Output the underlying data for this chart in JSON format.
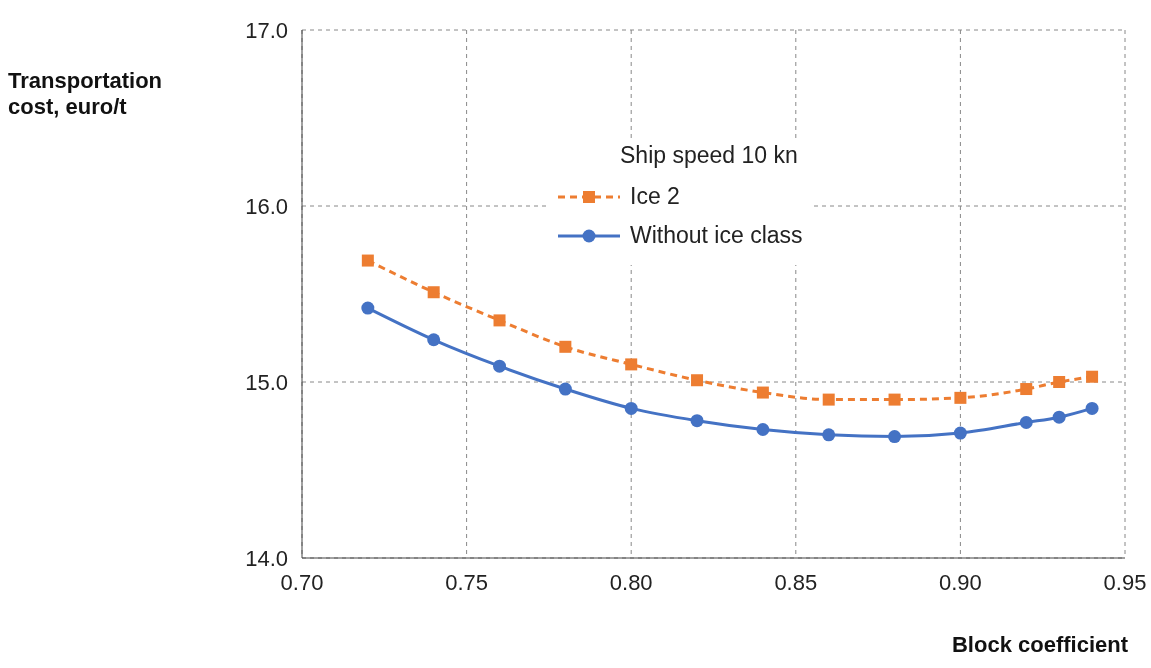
{
  "chart_data": {
    "type": "line",
    "xlabel": "Block coefficient",
    "ylabel": "Transportation cost, euro/t",
    "legend_title": "Ship speed 10 kn",
    "x": [
      0.72,
      0.74,
      0.76,
      0.78,
      0.8,
      0.82,
      0.84,
      0.86,
      0.88,
      0.9,
      0.92,
      0.93,
      0.94
    ],
    "series": [
      {
        "name": "Ice 2",
        "color": "#ed7d31",
        "marker": "square",
        "line_style": "dashed",
        "values": [
          15.69,
          15.51,
          15.35,
          15.2,
          15.1,
          15.01,
          14.94,
          14.9,
          14.9,
          14.91,
          14.96,
          15.0,
          15.03
        ]
      },
      {
        "name": "Without ice class",
        "color": "#4472c4",
        "marker": "circle",
        "line_style": "solid",
        "values": [
          15.42,
          15.24,
          15.09,
          14.96,
          14.85,
          14.78,
          14.73,
          14.7,
          14.69,
          14.71,
          14.77,
          14.8,
          14.85
        ]
      }
    ],
    "xlim": [
      0.7,
      0.95
    ],
    "xticks": [
      {
        "value": 0.7,
        "label": "0.70"
      },
      {
        "value": 0.75,
        "label": "0.75"
      },
      {
        "value": 0.8,
        "label": "0.80"
      },
      {
        "value": 0.85,
        "label": "0.85"
      },
      {
        "value": 0.9,
        "label": "0.90"
      },
      {
        "value": 0.95,
        "label": "0.95"
      }
    ],
    "ylim": [
      14.0,
      17.0
    ],
    "yticks": [
      {
        "value": 14.0,
        "label": "14.0"
      },
      {
        "value": 15.0,
        "label": "15.0"
      },
      {
        "value": 16.0,
        "label": "16.0"
      },
      {
        "value": 17.0,
        "label": "17.0"
      }
    ],
    "grid": true,
    "legend": "top"
  }
}
